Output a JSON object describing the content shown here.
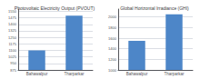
{
  "chart_data": [
    {
      "type": "bar",
      "title": "Photovoltaic Electricity Output (PVOUT)",
      "categories": [
        "Bahawalpur",
        "Tharparkar"
      ],
      "values": [
        1100,
        1500
      ],
      "color": "#4d86c8",
      "ylim": [
        875,
        1575
      ],
      "yticks": [
        875,
        950,
        1025,
        1100,
        1175,
        1250,
        1325,
        1400,
        1475,
        1550
      ],
      "grid": true
    },
    {
      "type": "bar",
      "title": "Global Horizontal Irradiance (GHI)",
      "categories": [
        "Bahawalpur",
        "Tharparkar"
      ],
      "values": [
        1550,
        2050
      ],
      "color": "#4d86c8",
      "ylim": [
        1000,
        2150
      ],
      "yticks": [
        1000,
        1200,
        1400,
        1600,
        1800,
        2000
      ],
      "grid": true
    }
  ]
}
